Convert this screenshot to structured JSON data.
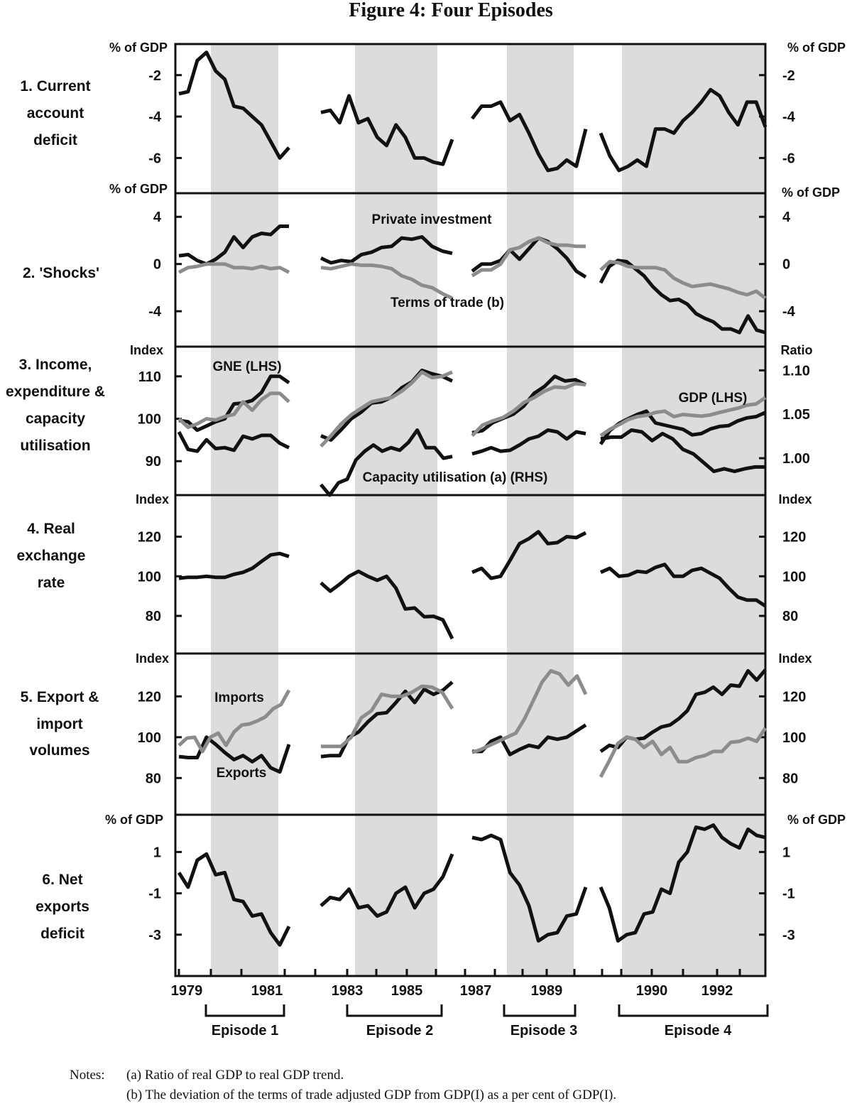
{
  "title": "Figure 4: Four Episodes",
  "notes": {
    "label": "Notes:",
    "a": "(a) Ratio of real GDP to real GDP trend.",
    "b": "(b) The deviation of the terms of trade adjusted GDP from GDP(I) as a per cent of GDP(I)."
  },
  "colors": {
    "black_series": "#111111",
    "grey_series": "#8c8c8c",
    "shade": "#dcdcdc"
  },
  "chart_data": {
    "type": "line",
    "x_ticks": [
      "1979",
      "1981",
      "1983",
      "1985",
      "1987",
      "1989",
      "1990",
      "1992"
    ],
    "episodes": [
      "Episode 1",
      "Episode 2",
      "Episode 3",
      "Episode 4"
    ],
    "segment_starts": [
      1978.5,
      1982.5,
      1986.75,
      1989.0
    ],
    "panels": [
      {
        "id": "current-account",
        "label": [
          "1. Current",
          "account",
          "deficit"
        ],
        "left_unit": "% of GDP",
        "right_unit": "% of GDP",
        "ylim": [
          -7.7,
          -0.5
        ],
        "ticks": [
          "-2",
          "-4",
          "-6"
        ],
        "tick_values": [
          -2,
          -4,
          -6
        ],
        "annotations": [],
        "series": [
          {
            "name": "Current account deficit",
            "color": "black",
            "segments": [
              [
                -2.9,
                -2.8,
                -1.3,
                -0.9,
                -1.8,
                -2.2,
                -3.5,
                -3.6,
                -4.0,
                -4.4,
                -5.2,
                -6.0,
                -5.5
              ],
              [
                -3.8,
                -3.7,
                -4.3,
                -3.0,
                -4.3,
                -4.1,
                -5.0,
                -5.4,
                -4.4,
                -5.0,
                -6.0,
                -6.0,
                -6.2,
                -6.3,
                -5.1
              ],
              [
                -4.1,
                -3.5,
                -3.5,
                -3.3,
                -4.2,
                -3.9,
                -4.8,
                -5.8,
                -6.6,
                -6.5,
                -6.1,
                -6.4,
                -4.6
              ],
              [
                -4.8,
                -5.9,
                -6.6,
                -6.4,
                -6.1,
                -6.4,
                -4.6,
                -4.6,
                -4.8,
                -4.2,
                -3.8,
                -3.3,
                -2.7,
                -3.0,
                -3.8,
                -4.4,
                -3.3,
                -3.3,
                -4.5
              ]
            ]
          }
        ]
      },
      {
        "id": "shocks",
        "label": [
          "2. 'Shocks'"
        ],
        "left_unit": "% of GDP",
        "right_unit": "% of GDP",
        "ylim": [
          -7.0,
          6.0
        ],
        "ticks": [
          "4",
          "0",
          "-4"
        ],
        "tick_values": [
          4,
          0,
          -4
        ],
        "annotations": [
          "Private investment",
          "Terms of trade (b)"
        ],
        "series": [
          {
            "name": "Private investment",
            "color": "black",
            "segments": [
              [
                0.7,
                0.8,
                0.3,
                0.0,
                0.4,
                1.0,
                2.3,
                1.4,
                2.3,
                2.6,
                2.5,
                3.2,
                3.2
              ],
              [
                0.5,
                0.1,
                0.3,
                0.2,
                0.8,
                1.0,
                1.4,
                1.5,
                2.2,
                2.1,
                2.3,
                1.5,
                1.1,
                0.9
              ],
              [
                -0.6,
                0.0,
                0.0,
                0.3,
                1.2,
                0.4,
                1.3,
                2.2,
                1.9,
                1.3,
                0.5,
                -0.6,
                -1.1
              ],
              [
                -1.6,
                -0.2,
                0.3,
                0.2,
                -0.4,
                -1.0,
                -1.9,
                -2.6,
                -3.1,
                -3.0,
                -3.4,
                -4.2,
                -4.6,
                -4.9,
                -5.5,
                -5.5,
                -5.8,
                -4.4,
                -5.6,
                -5.8
              ]
            ]
          },
          {
            "name": "Terms of trade (b)",
            "color": "grey",
            "segments": [
              [
                -0.7,
                -0.3,
                -0.2,
                0.0,
                0.0,
                0.0,
                -0.3,
                -0.3,
                -0.4,
                -0.2,
                -0.4,
                -0.3,
                -0.7
              ],
              [
                -0.3,
                -0.4,
                -0.2,
                0.0,
                -0.1,
                -0.1,
                -0.2,
                -0.4,
                -1.0,
                -1.3,
                -1.8,
                -2.0,
                -2.5,
                -2.9
              ],
              [
                -1.0,
                -0.5,
                -0.5,
                0.0,
                1.2,
                1.4,
                1.9,
                2.2,
                1.8,
                1.6,
                1.6,
                1.5,
                1.5
              ],
              [
                -0.5,
                0.2,
                0.1,
                -0.2,
                -0.3,
                -0.3,
                -0.3,
                -0.5,
                -1.2,
                -1.6,
                -1.9,
                -1.8,
                -1.7,
                -1.9,
                -2.1,
                -2.4,
                -2.6,
                -2.3,
                -2.9
              ]
            ]
          }
        ]
      },
      {
        "id": "income",
        "label": [
          "3. Income,",
          "expenditure &",
          "capacity",
          "utilisation"
        ],
        "left_unit": "Index",
        "right_unit": "Ratio",
        "ylim": [
          82,
          117
        ],
        "ticks": [
          "110",
          "100",
          "90"
        ],
        "tick_values": [
          110,
          100,
          90
        ],
        "right_ticks": [
          "1.10",
          "1.05",
          "1.00"
        ],
        "right_tick_values": [
          1.1,
          1.05,
          1.0
        ],
        "right_ylim": [
          0.958,
          1.127
        ],
        "annotations": [
          "GNE (LHS)",
          "GDP (LHS)",
          "Capacity utilisation (a) (RHS)"
        ],
        "series": [
          {
            "name": "GNE (LHS)",
            "color": "black",
            "segments": [
              [
                99.6,
                99.3,
                97.3,
                98.3,
                99.3,
                100.0,
                103.5,
                103.7,
                104.3,
                106.2,
                110.0,
                110.0,
                108.5
              ],
              [
                96.0,
                95.0,
                97.4,
                100.0,
                101.6,
                103.7,
                104.0,
                105.1,
                107.3,
                108.7,
                111.4,
                110.6,
                110.0,
                108.9
              ],
              [
                96.7,
                97.2,
                99.1,
                100.1,
                101.1,
                103.0,
                106.0,
                107.6,
                110.0,
                108.9,
                109.2,
                108.0
              ],
              [
                94.0,
                97.2,
                98.9,
                100.0,
                101.0,
                101.8,
                99.0,
                98.5,
                98.0,
                97.5,
                96.2,
                96.5,
                97.6,
                98.2,
                98.4,
                99.5,
                100.2,
                100.5,
                101.5
              ]
            ]
          },
          {
            "name": "GDP (LHS)",
            "color": "grey",
            "segments": [
              [
                100.0,
                98.0,
                98.8,
                100.0,
                99.7,
                100.5,
                101.0,
                104.0,
                102.0,
                104.5,
                106.0,
                106.0,
                104.0
              ],
              [
                93.5,
                96.0,
                98.8,
                100.9,
                102.5,
                104.0,
                104.5,
                105.0,
                106.5,
                108.5,
                111.0,
                109.7,
                110.0,
                111.0
              ],
              [
                96.0,
                98.5,
                99.5,
                100.3,
                101.8,
                103.8,
                105.0,
                106.5,
                107.5,
                107.3,
                108.3,
                108.0
              ],
              [
                96.0,
                97.5,
                98.6,
                99.8,
                100.5,
                100.8,
                101.5,
                101.8,
                100.5,
                101.0,
                100.8,
                100.6,
                100.9,
                101.5,
                102.0,
                102.5,
                103.2,
                103.5,
                105.0
              ]
            ]
          },
          {
            "name": "Capacity utilisation (a) (RHS)",
            "color": "black",
            "axis": "right",
            "segments": [
              [
                1.03,
                1.01,
                1.008,
                1.021,
                1.011,
                1.012,
                1.009,
                1.025,
                1.022,
                1.026,
                1.026,
                1.017,
                1.012
              ],
              [
                0.97,
                0.958,
                0.972,
                0.976,
                0.998,
                1.008,
                1.015,
                1.008,
                1.012,
                1.009,
                1.018,
                1.032,
                1.012,
                1.012,
                1.0,
                1.002
              ],
              [
                1.005,
                1.008,
                1.012,
                1.008,
                1.009,
                1.015,
                1.022,
                1.025,
                1.032,
                1.03,
                1.022,
                1.03,
                1.028
              ],
              [
                1.022,
                1.024,
                1.024,
                1.032,
                1.03,
                1.02,
                1.028,
                1.022,
                1.01,
                1.005,
                0.995,
                0.985,
                0.988,
                0.985,
                0.988,
                0.99,
                0.99
              ]
            ]
          }
        ]
      },
      {
        "id": "real-exchange",
        "label": [
          "4. Real",
          "exchange",
          "rate"
        ],
        "left_unit": "Index",
        "right_unit": "Index",
        "ylim": [
          61,
          141
        ],
        "ticks": [
          "120",
          "100",
          "80"
        ],
        "tick_values": [
          120,
          100,
          80
        ],
        "annotations": [],
        "series": [
          {
            "name": "Real exchange rate",
            "color": "black",
            "segments": [
              [
                99.0,
                99.5,
                99.5,
                100.0,
                99.5,
                99.5,
                101.0,
                102.0,
                104.0,
                107.5,
                110.8,
                111.5,
                110.0
              ],
              [
                96.7,
                92.5,
                96.0,
                100.0,
                102.5,
                100.0,
                98.0,
                100.0,
                94.0,
                83.5,
                84.0,
                79.6,
                79.8,
                78.0,
                68.5
              ],
              [
                102.0,
                104.0,
                99.0,
                100.0,
                108.0,
                116.5,
                119.0,
                122.5,
                116.5,
                117.0,
                120.0,
                119.5,
                122.0
              ],
              [
                102.0,
                104.0,
                100.0,
                100.5,
                102.5,
                102.0,
                104.5,
                106.0,
                100.0,
                100.0,
                103.0,
                104.0,
                101.5,
                99.0,
                94.0,
                89.5,
                88.0,
                88.0,
                85.0
              ]
            ]
          }
        ]
      },
      {
        "id": "trade-volumes",
        "label": [
          "5. Export &",
          "import",
          "volumes"
        ],
        "left_unit": "Index",
        "right_unit": "Index",
        "ylim": [
          62,
          141
        ],
        "ticks": [
          "120",
          "100",
          "80"
        ],
        "tick_values": [
          120,
          100,
          80
        ],
        "annotations": [
          "Imports",
          "Exports"
        ],
        "series": [
          {
            "name": "Exports",
            "color": "black",
            "segments": [
              [
                90.5,
                90.0,
                90.0,
                100.0,
                96.5,
                92.5,
                89.0,
                91.0,
                88.0,
                91.0,
                85.0,
                83.0,
                96.5
              ],
              [
                90.5,
                91.0,
                91.0,
                100.0,
                102.5,
                107.5,
                111.5,
                112.0,
                117.0,
                122.5,
                117.0,
                123.5,
                121.0,
                123.0,
                127.0
              ],
              [
                93.0,
                93.0,
                98.0,
                100.0,
                91.5,
                94.0,
                96.0,
                95.0,
                100.0,
                99.0,
                100.0,
                103.0,
                106.0
              ],
              [
                93.0,
                96.0,
                95.0,
                100.0,
                99.0,
                99.5,
                102.5,
                105.0,
                106.0,
                109.0,
                113.0,
                121.0,
                122.0,
                124.5,
                121.0,
                125.5,
                125.0,
                132.5,
                128.0,
                133.0
              ]
            ]
          },
          {
            "name": "Imports",
            "color": "grey",
            "segments": [
              [
                96.0,
                99.5,
                100.0,
                93.0,
                100.0,
                102.0,
                96.0,
                102.5,
                106.0,
                106.5,
                108.0,
                110.0,
                114.0,
                116.0,
                123.0
              ],
              [
                95.5,
                95.5,
                95.5,
                100.0,
                109.5,
                113.0,
                121.0,
                120.0,
                120.0,
                122.0,
                125.0,
                124.5,
                122.0,
                114.0
              ],
              [
                92.5,
                94.0,
                96.0,
                98.0,
                100.0,
                102.0,
                109.0,
                118.0,
                127.0,
                132.5,
                131.0,
                125.5,
                130.0,
                121.0
              ],
              [
                80.5,
                88.5,
                97.0,
                100.0,
                99.0,
                95.0,
                98.0,
                91.5,
                95.0,
                88.0,
                88.0,
                90.0,
                91.0,
                93.0,
                93.0,
                97.5,
                98.0,
                99.5,
                98.0,
                104.5
              ]
            ]
          }
        ]
      },
      {
        "id": "net-exports",
        "label": [
          "6. Net",
          "exports",
          "deficit"
        ],
        "left_unit": "% of GDP",
        "right_unit": "% of GDP",
        "ylim": [
          -5.0,
          2.8
        ],
        "ticks": [
          "1",
          "-1",
          "-3"
        ],
        "tick_values": [
          1,
          -1,
          -3
        ],
        "annotations": [],
        "series": [
          {
            "name": "Net exports deficit",
            "color": "black",
            "segments": [
              [
                0.0,
                -0.7,
                0.6,
                0.9,
                -0.1,
                0.0,
                -1.3,
                -1.4,
                -2.1,
                -2.0,
                -2.9,
                -3.5,
                -2.6
              ],
              [
                -1.6,
                -1.2,
                -1.3,
                -0.8,
                -1.7,
                -1.6,
                -2.1,
                -1.9,
                -1.0,
                -0.7,
                -1.7,
                -1.0,
                -0.8,
                -0.2,
                0.9
              ],
              [
                1.7,
                1.6,
                1.8,
                1.6,
                0.0,
                -0.6,
                -1.6,
                -3.3,
                -3.0,
                -2.9,
                -2.1,
                -2.0,
                -0.7
              ],
              [
                -0.7,
                -1.7,
                -3.3,
                -3.0,
                -2.9,
                -2.0,
                -1.9,
                -0.8,
                -1.0,
                0.5,
                1.0,
                2.2,
                2.1,
                2.3,
                1.7,
                1.4,
                1.2,
                2.1,
                1.8,
                1.7
              ]
            ]
          }
        ]
      }
    ]
  }
}
